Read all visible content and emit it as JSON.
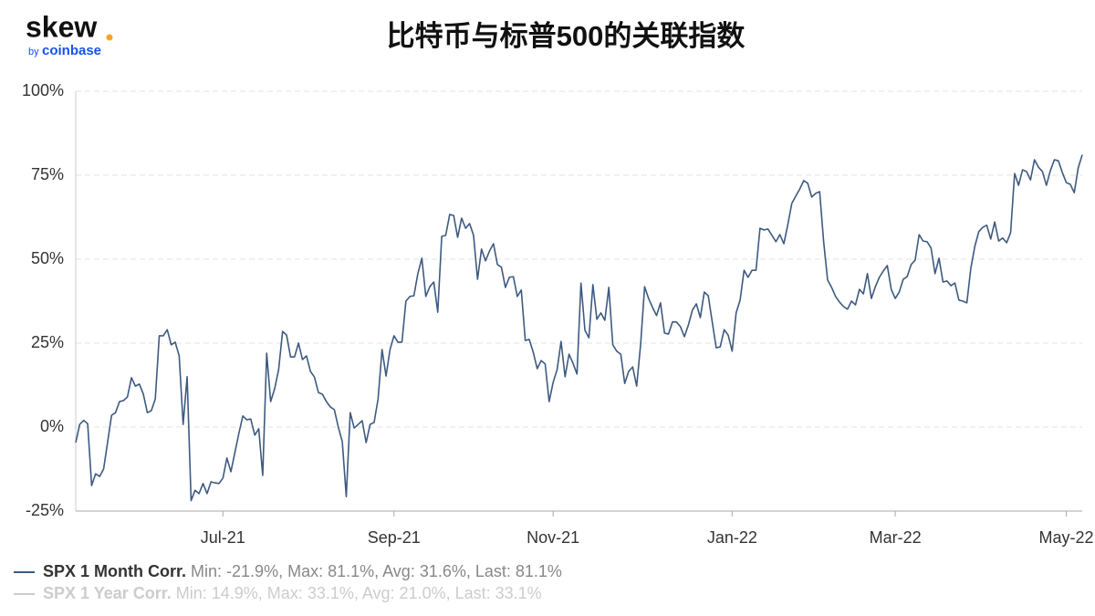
{
  "logo": {
    "text": "skew",
    "by": "by",
    "brand": "coinbase"
  },
  "chart_data": {
    "type": "line",
    "title": "比特币与标普500的关联指数",
    "categories": [
      null,
      null,
      null,
      null,
      null,
      null,
      null,
      null,
      null,
      null,
      null,
      null,
      null,
      null,
      null,
      null,
      null,
      null,
      null,
      null,
      null,
      null,
      null,
      null,
      null,
      null,
      null,
      null,
      null,
      null,
      null,
      null,
      null,
      null,
      null,
      null,
      null,
      "Jul-21",
      null,
      null,
      null,
      null,
      null,
      null,
      null,
      null,
      null,
      null,
      null,
      null,
      null,
      null,
      null,
      null,
      null,
      null,
      null,
      null,
      null,
      null,
      null,
      null,
      null,
      null,
      null,
      null,
      null,
      null,
      null,
      null,
      null,
      null,
      null,
      null,
      null,
      null,
      null,
      null,
      null,
      null,
      "Sep-21",
      null,
      null,
      null,
      null,
      null,
      null,
      null,
      null,
      null,
      null,
      null,
      null,
      null,
      null,
      null,
      null,
      null,
      null,
      null,
      null,
      null,
      null,
      null,
      null,
      null,
      null,
      null,
      null,
      null,
      null,
      null,
      null,
      null,
      null,
      null,
      null,
      null,
      null,
      null,
      "Nov-21",
      null,
      null,
      null,
      null,
      null,
      null,
      null,
      null,
      null,
      null,
      null,
      null,
      null,
      null,
      null,
      null,
      null,
      null,
      null,
      null,
      null,
      null,
      null,
      null,
      null,
      null,
      null,
      null,
      null,
      null,
      null,
      null,
      null,
      null,
      null,
      null,
      null,
      null,
      null,
      null,
      null,
      null,
      null,
      null,
      "Jan-22",
      null,
      null,
      null,
      null,
      null,
      null,
      null,
      null,
      null,
      null,
      null,
      null,
      null,
      null,
      null,
      null,
      null,
      null,
      null,
      null,
      null,
      null,
      null,
      null,
      null,
      null,
      null,
      null,
      null,
      null,
      null,
      null,
      null,
      null,
      null,
      null,
      null,
      null,
      null,
      null,
      "Mar-22",
      null,
      null,
      null,
      null,
      null,
      null,
      null,
      null,
      null,
      null,
      null,
      null,
      null,
      null,
      null,
      null,
      null,
      null,
      null,
      null,
      null,
      null,
      null,
      null,
      null,
      null,
      null,
      null,
      null,
      null,
      null,
      null,
      null,
      null,
      null,
      null,
      null,
      null,
      null,
      null,
      null,
      null,
      "May-22",
      null,
      null,
      null,
      null
    ],
    "series": [
      {
        "name": "SPX 1 Month Corr.",
        "color": "#3d5a80",
        "visible": true,
        "stats": "Min: -21.9%, Max: 81.1%, Avg: 31.6%, Last: 81.1%",
        "values": [
          -4.6,
          0.8,
          2,
          1,
          -17.4,
          -13.9,
          -14.7,
          -12.5,
          -4.6,
          3.5,
          4.3,
          7.6,
          7.9,
          9,
          14.7,
          12.2,
          12.8,
          9.8,
          4.3,
          4.9,
          8.4,
          27.2,
          27.2,
          29,
          24.5,
          25.3,
          21.2,
          0.8,
          15,
          -21.9,
          -18.8,
          -19.8,
          -16.8,
          -19.8,
          -16.3,
          -16.6,
          -16.8,
          -15.2,
          -9.2,
          -13.3,
          -7.6,
          -1.9,
          3.3,
          2.2,
          2.4,
          -2.4,
          -0.5,
          -14.4,
          22,
          7.6,
          11.4,
          17.1,
          28.5,
          27.4,
          20.9,
          20.9,
          25,
          20.1,
          21.2,
          16.6,
          14.9,
          10.3,
          9.8,
          7.6,
          6,
          5.2,
          0,
          -4.3,
          -20.7,
          4.3,
          -0.3,
          0.8,
          1.9,
          -4.6,
          0.8,
          1.4,
          8.4,
          23.1,
          15.2,
          23.1,
          27.2,
          25.3,
          25.3,
          37.5,
          38.9,
          39.1,
          45.7,
          50.3,
          38.9,
          41.8,
          43.2,
          34.2,
          56.8,
          57.1,
          63.3,
          63,
          56.5,
          62.2,
          59.2,
          60.6,
          57.1,
          44,
          53,
          49.5,
          52.4,
          54.6,
          48.4,
          47.6,
          41.6,
          44.6,
          44.8,
          38.9,
          40.8,
          25.8,
          26.1,
          22.3,
          17.4,
          19.8,
          18.8,
          7.6,
          13.3,
          17.1,
          25.5,
          15,
          21.7,
          19,
          15.8,
          42.9,
          28.8,
          26.6,
          42.4,
          32.1,
          34,
          31.8,
          41.6,
          24.5,
          22.6,
          21.7,
          13,
          16.6,
          17.9,
          12.2,
          24.7,
          41.8,
          38.3,
          35.6,
          33.2,
          37,
          28,
          27.7,
          31.3,
          31.3,
          29.9,
          26.9,
          30.4,
          34.8,
          36.7,
          32.6,
          40.2,
          39.1,
          31.3,
          23.6,
          23.9,
          29,
          27.4,
          22.6,
          34,
          37.8,
          46.7,
          44.6,
          46.7,
          46.7,
          59.2,
          58.7,
          59,
          57.1,
          55.2,
          57.3,
          54.6,
          60.3,
          66.6,
          68.8,
          70.9,
          73.4,
          72.6,
          68.5,
          69.6,
          70.1,
          55.2,
          43.8,
          41.6,
          38.9,
          37.2,
          35.9,
          35.1,
          37.5,
          36.4,
          41,
          39.7,
          45.7,
          38.3,
          41.8,
          44.6,
          46.5,
          48.1,
          41,
          38.3,
          40.2,
          44,
          44.8,
          48.4,
          49.7,
          57.3,
          55.4,
          55.2,
          53.3,
          45.7,
          50.3,
          43.2,
          43.5,
          42.1,
          42.9,
          37.8,
          37.5,
          37,
          47.3,
          53.8,
          58.2,
          59.5,
          60.1,
          56,
          61.1,
          55.4,
          56.3,
          54.9,
          57.9,
          75.5,
          72,
          76.6,
          76.1,
          73.6,
          79.6,
          77.4,
          76.1,
          72,
          76.4,
          79.6,
          79.3,
          75.8,
          72.8,
          72.3,
          69.8,
          77.2,
          81.1
        ]
      },
      {
        "name": "SPX 1 Year Corr.",
        "color": "#d9d9d9",
        "visible": false,
        "stats": "Min: 14.9%, Max: 33.1%, Avg: 21.0%, Last: 33.1%"
      }
    ],
    "ylim": [
      -25,
      100
    ],
    "yticks": [
      {
        "value": -25,
        "label": "-25%"
      },
      {
        "value": 0,
        "label": "0%"
      },
      {
        "value": 25,
        "label": "25%"
      },
      {
        "value": 50,
        "label": "50%"
      },
      {
        "value": 75,
        "label": "75%"
      },
      {
        "value": 100,
        "label": "100%"
      }
    ],
    "grid": true
  }
}
